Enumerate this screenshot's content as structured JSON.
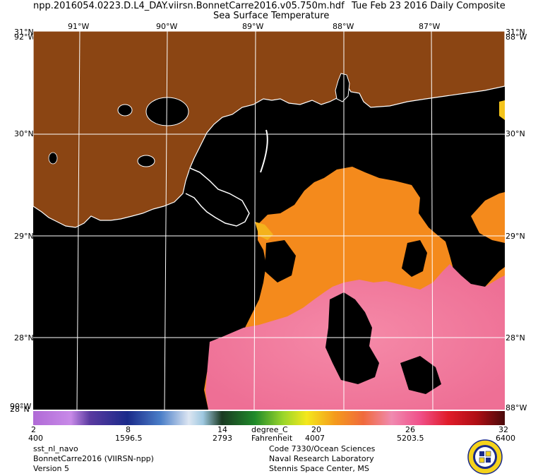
{
  "header": {
    "file": "npp.2016054.0223.D.L4_DAY.viirsn.BonnetCarre2016.v05.750m.hdf",
    "date": "Tue Feb 23 2016 Daily Composite",
    "product": "Sea Surface Temperature"
  },
  "lon_labels": [
    "91°W",
    "90°W",
    "89°W",
    "88°W",
    "87°W"
  ],
  "lat_labels": [
    "30°N",
    "29°N",
    "28°N"
  ],
  "corners": {
    "top_left_a": "31°N",
    "top_left_b": "92°W",
    "top_right_a": "31°N",
    "top_right_b": "88°W",
    "bottom_left_a": "90°W",
    "bottom_left_b": "28°N",
    "bottom_right": "88°W"
  },
  "colorbar": {
    "celsius_ticks": [
      "2",
      "8",
      "14",
      "20",
      "26",
      "32"
    ],
    "fahrenheit_ticks": [
      "400",
      "1596.5",
      "2793",
      "4007",
      "5203.5",
      "6400"
    ],
    "unit_c": "degree_C",
    "unit_f": "Fahrenheit"
  },
  "footer_left": [
    "sst_nl_navo",
    "BonnetCarre2016 (VIIRSN-npp)",
    "Version 5"
  ],
  "footer_right": [
    "Code 7330/Ocean Sciences",
    "Naval Research Laboratory",
    "Stennis Space Center, MS"
  ],
  "colors": {
    "land": "#8b4513",
    "no_data": "#000000",
    "coast": "#ffffff",
    "warm_orange": "#f48a1c",
    "warm_pink": "#f07aa0"
  }
}
